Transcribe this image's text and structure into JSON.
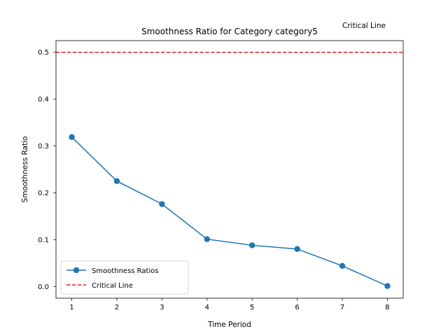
{
  "chart_data": {
    "type": "line",
    "title": "Smoothness Ratio for Category category5",
    "xlabel": "Time Period",
    "ylabel": "Smoothness Ratio",
    "x": [
      1,
      2,
      3,
      4,
      5,
      6,
      7,
      8
    ],
    "x_ticks": [
      "1",
      "2",
      "3",
      "4",
      "5",
      "6",
      "7",
      "8"
    ],
    "y_ticks": [
      "0.0",
      "0.1",
      "0.2",
      "0.3",
      "0.4",
      "0.5"
    ],
    "xlim": [
      0.65,
      8.35
    ],
    "ylim": [
      -0.025,
      0.525
    ],
    "series": [
      {
        "name": "Smoothness Ratios",
        "color": "#1f77b4",
        "marker": "circle",
        "values": [
          0.319,
          0.225,
          0.176,
          0.101,
          0.088,
          0.08,
          0.044,
          0.001
        ]
      }
    ],
    "reference_lines": [
      {
        "name": "Critical Line",
        "y": 0.5,
        "color": "#d62728",
        "style": "dashed"
      }
    ],
    "annotation": "Critical Line",
    "legend": {
      "placement": "lower-left",
      "entries": [
        "Smoothness Ratios",
        "Critical Line"
      ]
    },
    "grid": false
  }
}
